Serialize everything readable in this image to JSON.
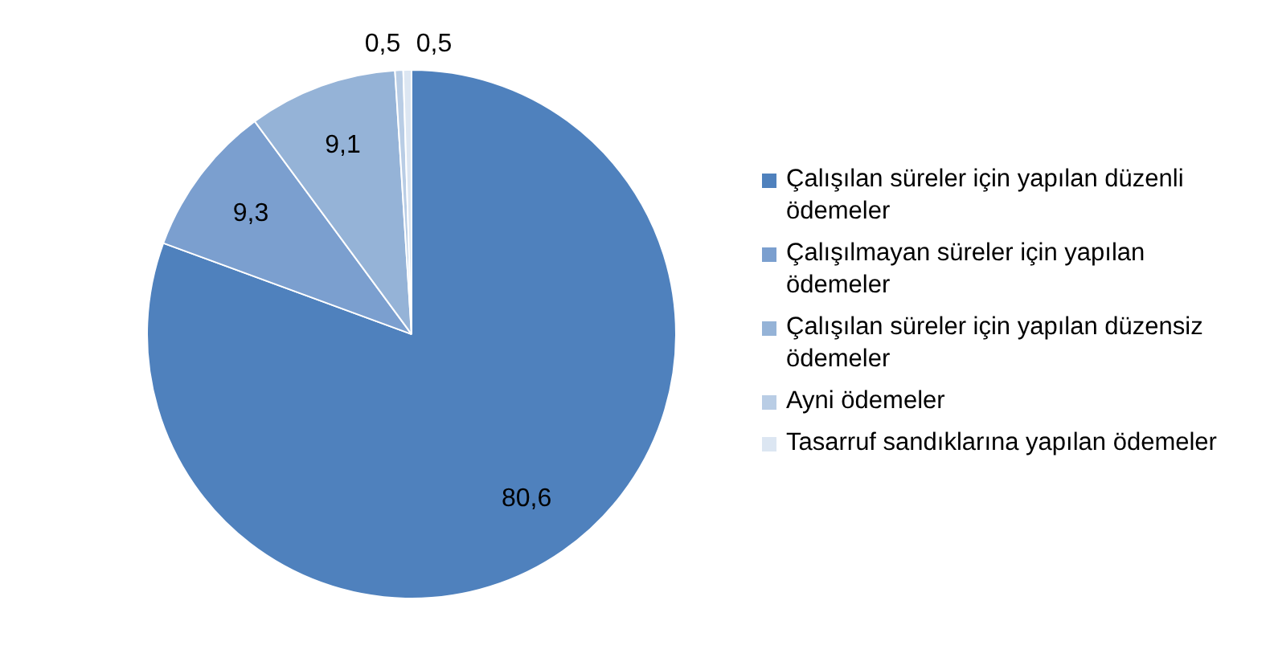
{
  "chart_data": {
    "type": "pie",
    "categories": [
      "Çalışılan süreler için yapılan düzenli ödemeler",
      "Çalışılmayan süreler için yapılan ödemeler",
      "Çalışılan süreler için yapılan düzensiz ödemeler",
      "Ayni ödemeler",
      "Tasarruf sandıklarına yapılan ödemeler"
    ],
    "values": [
      80.6,
      9.3,
      9.1,
      0.5,
      0.5
    ],
    "colors": [
      "#4f81bd",
      "#7b9fcf",
      "#95b3d7",
      "#b9cde5",
      "#dce6f2"
    ],
    "value_labels": [
      "80,6",
      "9,3",
      "9,1",
      "0,5",
      "0,5"
    ],
    "legend": "right"
  }
}
